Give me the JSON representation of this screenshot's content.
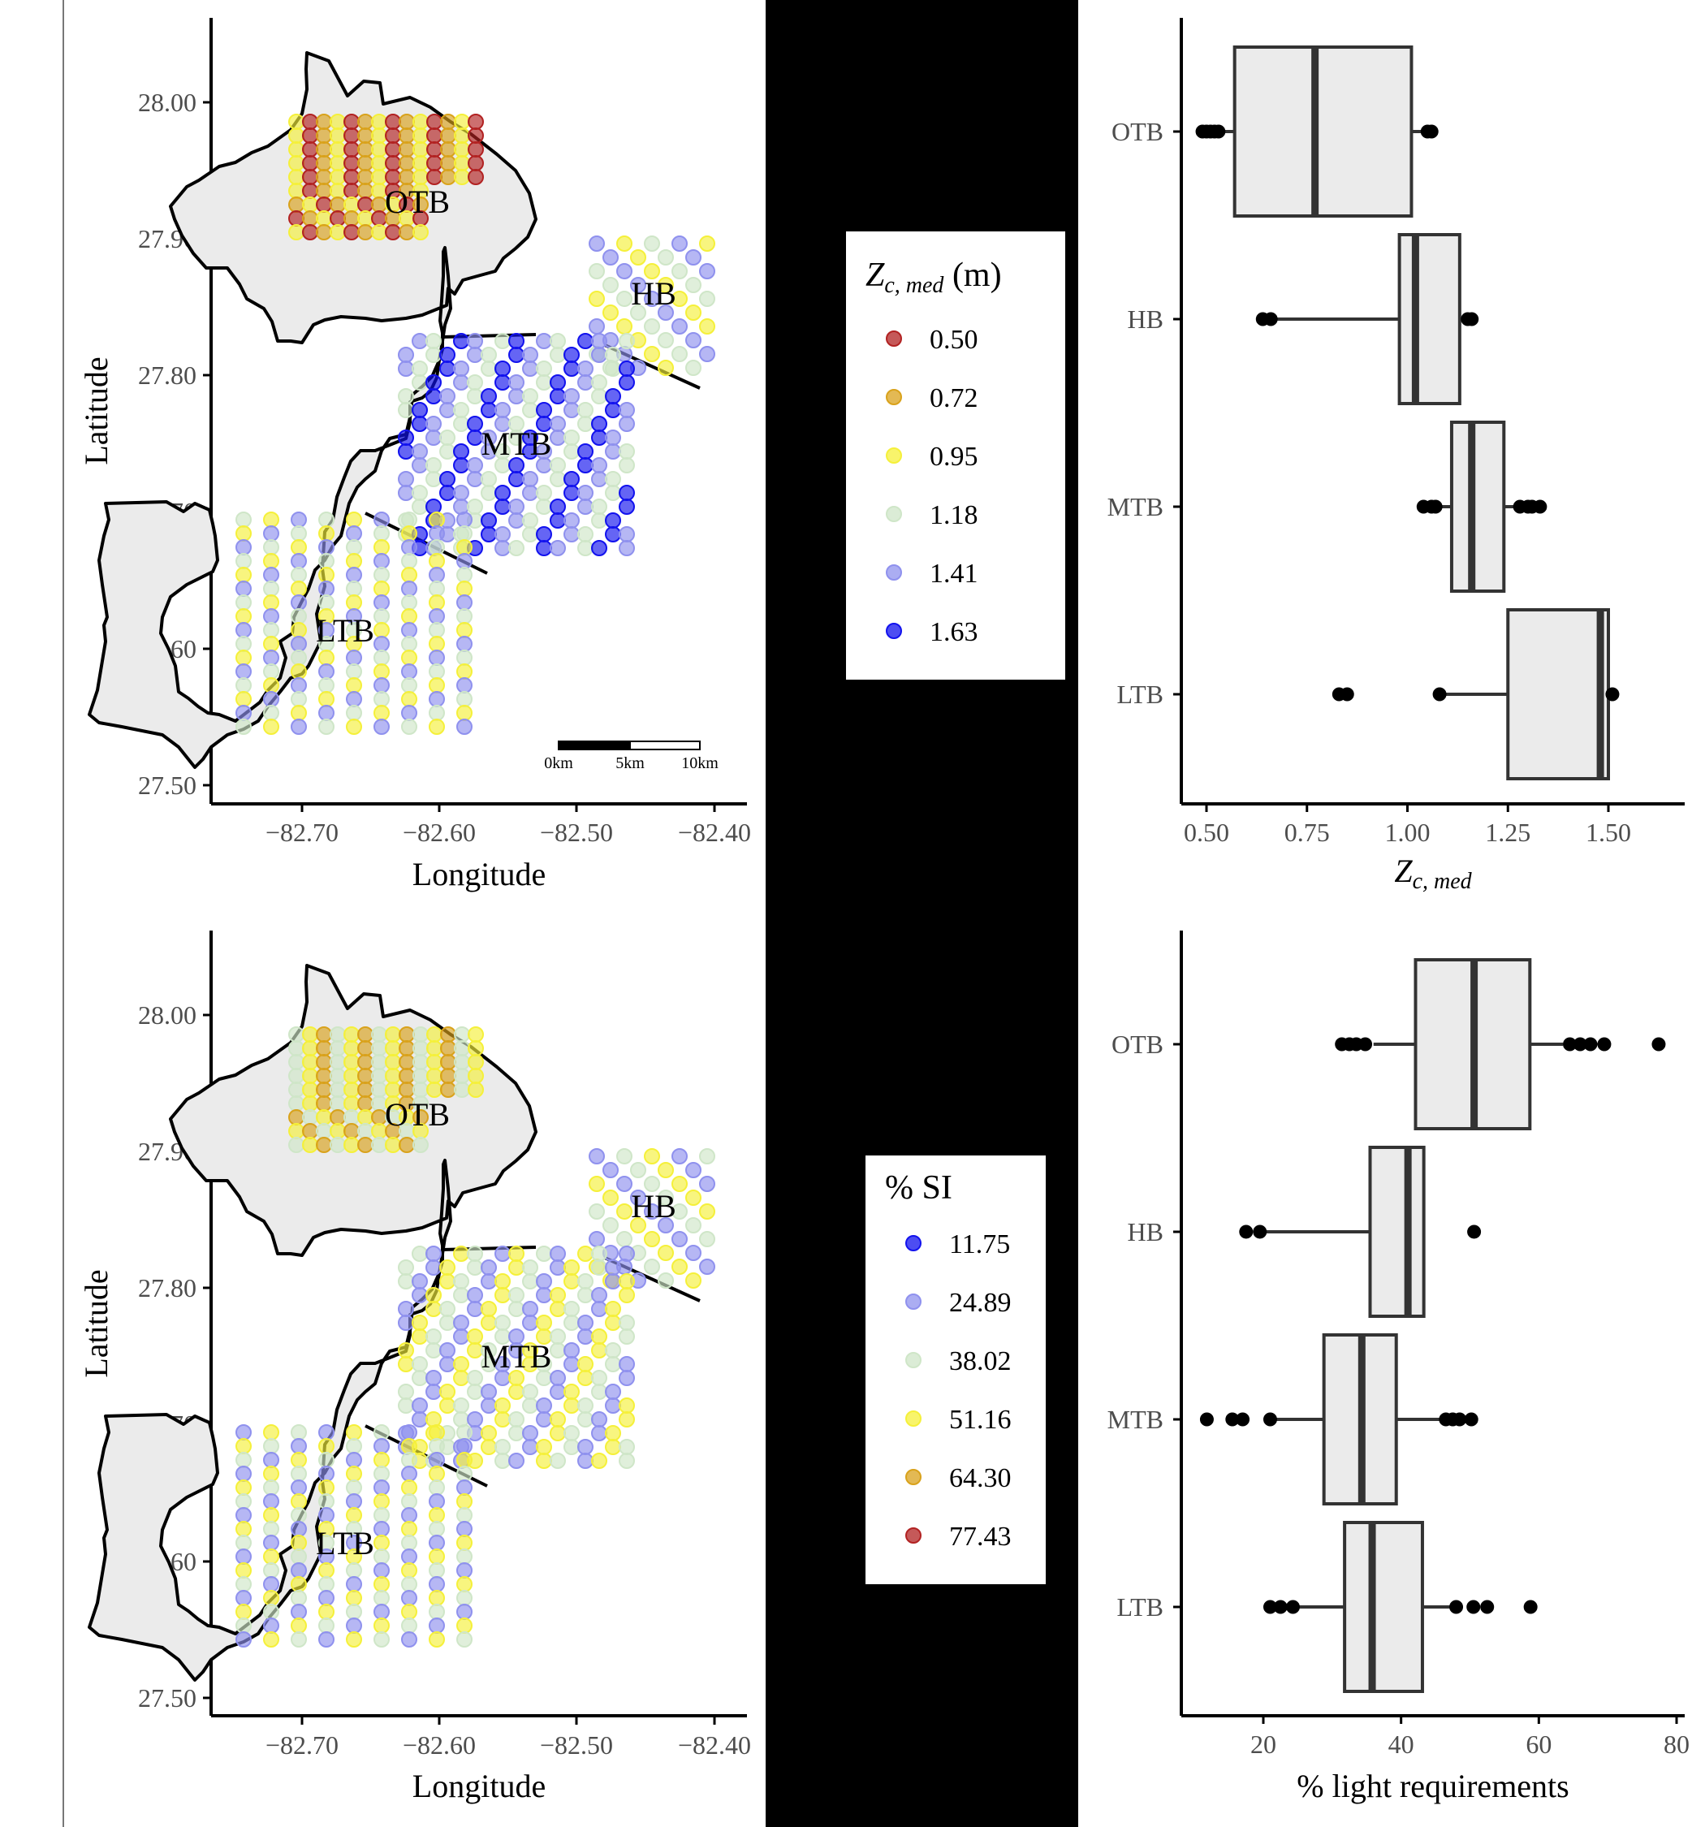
{
  "colors": {
    "background": "#ffffff",
    "center_band": "#000000",
    "land_fill": "#ebebeb",
    "box_fill": "#ebebeb",
    "line": "#000000",
    "legend_red": "#b22222",
    "legend_orange": "#d9a21b",
    "legend_yellow": "#f5f03a",
    "legend_pale": "#cfe6c8",
    "legend_lavender": "#8f91ee",
    "legend_blue": "#1212ee"
  },
  "maps": {
    "xlabel": "Longitude",
    "ylabel": "Latitude",
    "x_ticks": [
      "−82.70",
      "−82.60",
      "−82.50",
      "−82.40"
    ],
    "y_ticks": [
      "28.00",
      "27.90",
      "27.80",
      "27.70",
      "27.60",
      "27.50"
    ],
    "regions": [
      "OTB",
      "HB",
      "MTB",
      "LTB"
    ],
    "scale_bar": [
      "0km",
      "5km",
      "10km"
    ]
  },
  "legend_zc": {
    "title_main": "Z",
    "title_sub": "c, med",
    "title_unit": " (m)",
    "items": [
      {
        "label": "0.50",
        "color": "#b22222"
      },
      {
        "label": "0.72",
        "color": "#d9a21b"
      },
      {
        "label": "0.95",
        "color": "#f5f03a"
      },
      {
        "label": "1.18",
        "color": "#cfe6c8"
      },
      {
        "label": "1.41",
        "color": "#8f91ee"
      },
      {
        "label": "1.63",
        "color": "#1212ee"
      }
    ]
  },
  "legend_si": {
    "title": "% SI",
    "items": [
      {
        "label": "11.75",
        "color": "#1212ee"
      },
      {
        "label": "24.89",
        "color": "#8f91ee"
      },
      {
        "label": "38.02",
        "color": "#cfe6c8"
      },
      {
        "label": "51.16",
        "color": "#f5f03a"
      },
      {
        "label": "64.30",
        "color": "#d9a21b"
      },
      {
        "label": "77.43",
        "color": "#b22222"
      }
    ]
  },
  "chart_data": [
    {
      "type": "box",
      "orientation": "horizontal",
      "xlabel_main": "Z",
      "xlabel_sub": "c, med",
      "xlim": [
        0.45,
        1.65
      ],
      "x_ticks": [
        "0.50",
        "0.75",
        "1.00",
        "1.25",
        "1.50"
      ],
      "x_tick_values": [
        0.5,
        0.75,
        1.0,
        1.25,
        1.5
      ],
      "categories": [
        "OTB",
        "HB",
        "MTB",
        "LTB"
      ],
      "boxes": [
        {
          "q1": 0.57,
          "median": 0.77,
          "q3": 1.01,
          "whisker_low": 0.5,
          "whisker_high": 1.05,
          "outliers": [
            0.49,
            0.5,
            0.51,
            0.52,
            0.53,
            1.05,
            1.06
          ]
        },
        {
          "q1": 0.98,
          "median": 1.02,
          "q3": 1.13,
          "whisker_low": 0.66,
          "whisker_high": 1.16,
          "outliers": [
            0.64,
            0.66,
            1.15,
            1.16
          ]
        },
        {
          "q1": 1.11,
          "median": 1.16,
          "q3": 1.24,
          "whisker_low": 1.05,
          "whisker_high": 1.27,
          "outliers": [
            1.04,
            1.06,
            1.07,
            1.28,
            1.3,
            1.31,
            1.33
          ]
        },
        {
          "q1": 1.25,
          "median": 1.48,
          "q3": 1.5,
          "whisker_low": 1.08,
          "whisker_high": 1.5,
          "outliers": [
            0.83,
            0.85,
            1.08,
            1.51
          ]
        }
      ]
    },
    {
      "type": "box",
      "orientation": "horizontal",
      "xlabel": "% light requirements",
      "xlim": [
        8,
        80
      ],
      "x_ticks": [
        "20",
        "40",
        "60",
        "80"
      ],
      "x_tick_values": [
        20,
        40,
        60,
        80
      ],
      "categories": [
        "OTB",
        "HB",
        "MTB",
        "LTB"
      ],
      "boxes": [
        {
          "q1": 42.1,
          "median": 50.6,
          "q3": 58.7,
          "whisker_low": 36.0,
          "whisker_high": 63.5,
          "outliers": [
            31.4,
            32.5,
            33.5,
            34.8,
            64.5,
            66.0,
            67.5,
            69.5,
            77.4
          ]
        },
        {
          "q1": 35.5,
          "median": 41.0,
          "q3": 43.3,
          "whisker_low": 20.0,
          "whisker_high": 43.3,
          "outliers": [
            17.5,
            19.5,
            50.6
          ]
        },
        {
          "q1": 28.8,
          "median": 34.3,
          "q3": 39.3,
          "whisker_low": 21.0,
          "whisker_high": 46.0,
          "outliers": [
            11.8,
            15.5,
            17.0,
            21.0,
            46.5,
            47.5,
            48.5,
            50.2
          ]
        },
        {
          "q1": 31.8,
          "median": 35.8,
          "q3": 43.1,
          "whisker_low": 24.0,
          "whisker_high": 47.5,
          "outliers": [
            21.0,
            22.5,
            24.3,
            48.0,
            50.5,
            52.5,
            58.8
          ]
        }
      ]
    }
  ]
}
